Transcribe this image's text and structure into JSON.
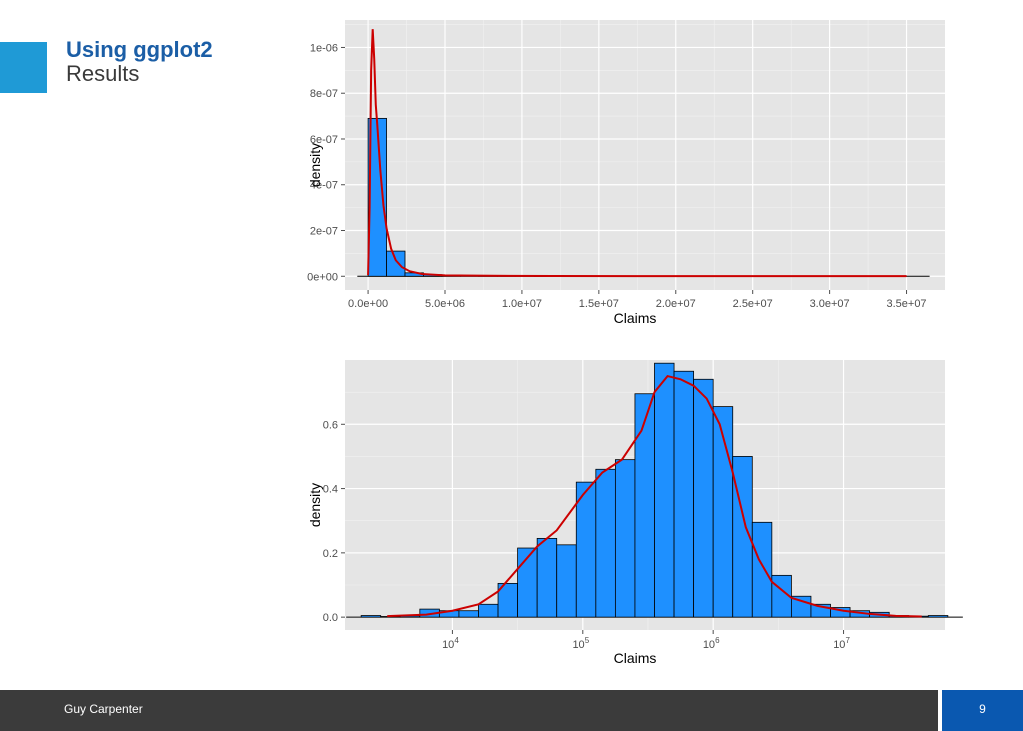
{
  "slide": {
    "title": "Using ggplot2",
    "subtitle": "Results",
    "footer": "Guy Carpenter",
    "page_number": "9",
    "colors": {
      "title": "#1b5ea6",
      "accent": "#1f9ad6",
      "footer_bg": "#3b3b3b",
      "page_box": "#0a58b0"
    }
  },
  "chart_data": [
    {
      "type": "bar",
      "subtype": "histogram-with-density",
      "xlabel": "Claims",
      "ylabel": "density",
      "xlim": [
        -1500000,
        37500000
      ],
      "ylim": [
        -6e-08,
        1.12e-06
      ],
      "x_ticks": [
        0,
        5000000,
        10000000,
        15000000,
        20000000,
        25000000,
        30000000,
        35000000
      ],
      "x_tick_labels": [
        "0.0e+00",
        "5.0e+06",
        "1.0e+07",
        "1.5e+07",
        "2.0e+07",
        "2.5e+07",
        "3.0e+07",
        "3.5e+07"
      ],
      "y_ticks": [
        0,
        2e-07,
        4e-07,
        6e-07,
        8e-07,
        1e-06
      ],
      "y_tick_labels": [
        "0e+00",
        "2e-07",
        "4e-07",
        "6e-07",
        "8e-07",
        "1e-06"
      ],
      "bin_width": 1200000,
      "bins_start": [
        0,
        1200000,
        2400000,
        3600000,
        4800000,
        6000000,
        7200000,
        8400000,
        9600000,
        10800000,
        12000000,
        13200000
      ],
      "values": [
        6.9e-07,
        1.1e-07,
        1.5e-08,
        7e-09,
        4e-09,
        3e-09,
        2e-09,
        2e-09,
        3e-09,
        1e-09,
        2e-09,
        1e-09
      ],
      "density_curve": {
        "color": "#cc0000",
        "x": [
          0,
          100000,
          200000,
          300000,
          400000,
          500000,
          600000,
          700000,
          800000,
          1000000,
          1200000,
          1500000,
          1800000,
          2200000,
          2700000,
          3500000,
          5000000,
          8000000,
          12000000,
          20000000,
          30000000,
          35000000
        ],
        "y": [
          5e-09,
          3e-07,
          9e-07,
          1.08e-06,
          9.5e-07,
          7.5e-07,
          6.6e-07,
          5.6e-07,
          4.6e-07,
          3.1e-07,
          2.1e-07,
          1.2e-07,
          7e-08,
          4e-08,
          2.2e-08,
          1e-08,
          4e-09,
          2e-09,
          1e-09,
          5e-10,
          5e-10,
          5e-10
        ]
      },
      "bar_color": "#1e90ff",
      "panel_bg": "#e5e5e5",
      "grid": true
    },
    {
      "type": "bar",
      "subtype": "histogram-with-density",
      "xscale": "log10",
      "xlabel": "Claims",
      "ylabel": "density",
      "xlim": [
        1500,
        60000000
      ],
      "ylim": [
        -0.04,
        0.8
      ],
      "x_ticks": [
        10000,
        100000,
        1000000,
        10000000
      ],
      "x_tick_labels": [
        {
          "base": "10",
          "exp": "4"
        },
        {
          "base": "10",
          "exp": "5"
        },
        {
          "base": "10",
          "exp": "6"
        },
        {
          "base": "10",
          "exp": "7"
        }
      ],
      "y_ticks": [
        0.0,
        0.2,
        0.4,
        0.6
      ],
      "y_tick_labels": [
        "0.0",
        "0.2",
        "0.4",
        "0.6"
      ],
      "bin_width_log10": 0.15,
      "bins_start_log10": [
        3.3,
        3.45,
        3.6,
        3.75,
        3.9,
        4.05,
        4.2,
        4.35,
        4.5,
        4.65,
        4.8,
        4.95,
        5.1,
        5.25,
        5.4,
        5.55,
        5.7,
        5.85,
        6.0,
        6.15,
        6.3,
        6.45,
        6.6,
        6.75,
        6.9,
        7.05,
        7.2,
        7.35,
        7.5,
        7.65
      ],
      "values": [
        0.005,
        0.002,
        0.004,
        0.025,
        0.02,
        0.02,
        0.04,
        0.105,
        0.215,
        0.245,
        0.225,
        0.42,
        0.46,
        0.49,
        0.695,
        0.79,
        0.765,
        0.74,
        0.655,
        0.5,
        0.295,
        0.13,
        0.065,
        0.04,
        0.03,
        0.02,
        0.015,
        0.005,
        0.003,
        0.005
      ],
      "density_curve": {
        "color": "#cc0000",
        "x_log10": [
          3.5,
          3.8,
          4.0,
          4.2,
          4.35,
          4.5,
          4.65,
          4.8,
          5.0,
          5.15,
          5.3,
          5.45,
          5.55,
          5.65,
          5.75,
          5.85,
          5.95,
          6.05,
          6.15,
          6.25,
          6.35,
          6.45,
          6.6,
          6.8,
          7.0,
          7.2,
          7.4,
          7.6
        ],
        "y": [
          0.003,
          0.008,
          0.02,
          0.04,
          0.08,
          0.15,
          0.22,
          0.27,
          0.38,
          0.45,
          0.49,
          0.58,
          0.7,
          0.75,
          0.74,
          0.72,
          0.68,
          0.6,
          0.45,
          0.28,
          0.18,
          0.11,
          0.06,
          0.035,
          0.02,
          0.01,
          0.004,
          0.002
        ]
      },
      "bar_color": "#1e90ff",
      "panel_bg": "#e5e5e5",
      "grid": true
    }
  ]
}
